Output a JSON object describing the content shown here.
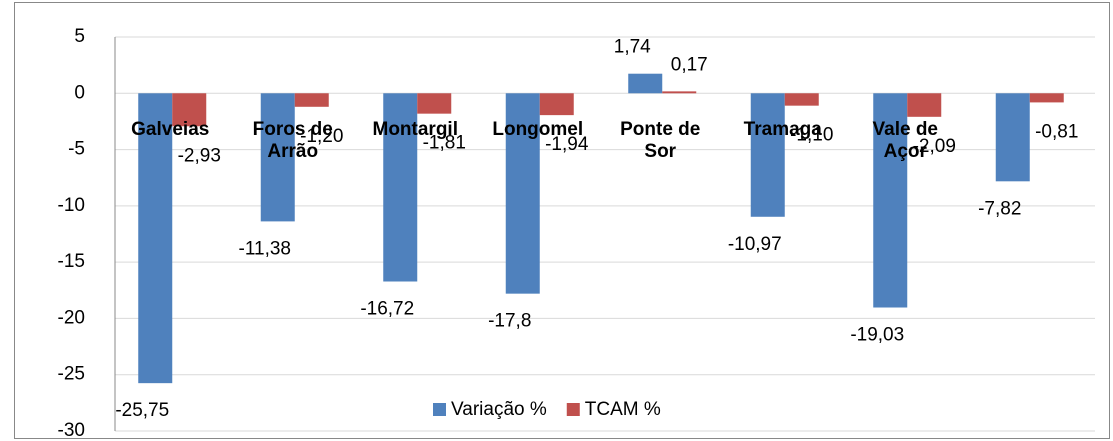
{
  "chart_data": {
    "type": "bar",
    "categories": [
      "Galveias",
      "Foros de Arrão",
      "Montargil",
      "Longomel",
      "Ponte de Sor",
      "Tramaga",
      "Vale de Açor",
      null
    ],
    "series": [
      {
        "name": "Variação %",
        "color": "#4f81bd",
        "values": [
          -25.75,
          -11.38,
          -16.72,
          -17.8,
          1.74,
          -10.97,
          -19.03,
          -7.82
        ],
        "value_labels": [
          "-25,75",
          "-11,38",
          "-16,72",
          "-17,8",
          "1,74",
          "-10,97",
          "-19,03",
          "-7,82"
        ]
      },
      {
        "name": "TCAM %",
        "color": "#c0504d",
        "values": [
          -2.93,
          -1.2,
          -1.81,
          -1.94,
          0.17,
          -1.1,
          -2.09,
          -0.81
        ],
        "value_labels": [
          "-2,93",
          "-1,20",
          "-1,81",
          "-1,94",
          "0,17",
          "-1,10",
          "-2,09",
          "-0,81"
        ]
      }
    ],
    "ylim": [
      -30,
      5
    ],
    "yticks": [
      5,
      0,
      -5,
      -10,
      -15,
      -20,
      -25,
      -30
    ],
    "grid": true,
    "legend": "bottom"
  }
}
